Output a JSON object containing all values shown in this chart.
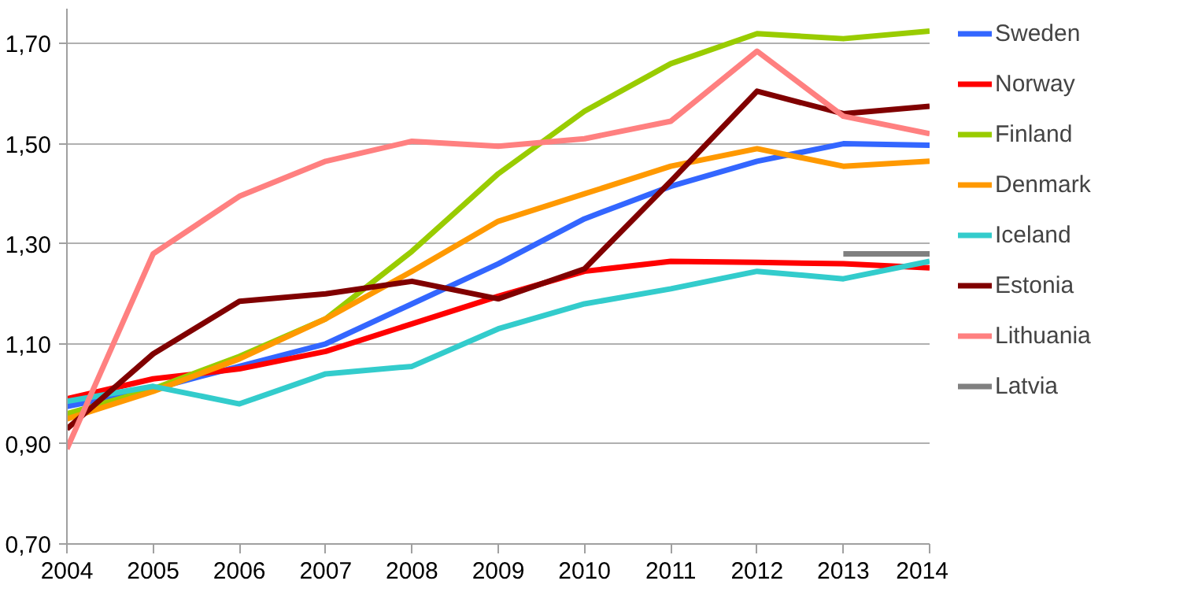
{
  "chart_data": {
    "type": "line",
    "x": [
      2004,
      2005,
      2006,
      2007,
      2008,
      2009,
      2010,
      2011,
      2012,
      2013,
      2014
    ],
    "series": [
      {
        "name": "Sweden",
        "color": "#3366ff",
        "values": [
          0.975,
          1.01,
          1.055,
          1.1,
          1.18,
          1.26,
          1.35,
          1.415,
          1.465,
          1.5,
          1.497
        ]
      },
      {
        "name": "Norway",
        "color": "#ff0000",
        "values": [
          0.99,
          1.03,
          1.05,
          1.085,
          1.14,
          1.195,
          1.245,
          1.265,
          1.263,
          1.26,
          1.252
        ]
      },
      {
        "name": "Finland",
        "color": "#99cc00",
        "values": [
          0.96,
          1.01,
          1.075,
          1.15,
          1.285,
          1.44,
          1.565,
          1.66,
          1.72,
          1.71,
          1.725
        ]
      },
      {
        "name": "Denmark",
        "color": "#ff9900",
        "values": [
          0.95,
          1.005,
          1.07,
          1.15,
          1.245,
          1.345,
          1.4,
          1.455,
          1.49,
          1.455,
          1.465
        ]
      },
      {
        "name": "Iceland",
        "color": "#33cccc",
        "values": [
          0.985,
          1.015,
          0.98,
          1.04,
          1.055,
          1.13,
          1.18,
          1.21,
          1.245,
          1.23,
          1.265
        ]
      },
      {
        "name": "Estonia",
        "color": "#800000",
        "values": [
          0.93,
          1.08,
          1.185,
          1.2,
          1.225,
          1.19,
          1.25,
          1.425,
          1.605,
          1.56,
          1.575
        ]
      },
      {
        "name": "Lithuania",
        "color": "#ff8080",
        "values": [
          0.89,
          1.28,
          1.395,
          1.465,
          1.505,
          1.495,
          1.51,
          1.545,
          1.685,
          1.555,
          1.52
        ]
      },
      {
        "name": "Latvia",
        "color": "#808080",
        "values": [
          null,
          null,
          null,
          null,
          null,
          null,
          null,
          null,
          null,
          1.28,
          1.28
        ]
      }
    ],
    "xlim": [
      2004,
      2014
    ],
    "xticks": [
      2004,
      2005,
      2006,
      2007,
      2008,
      2009,
      2010,
      2011,
      2012,
      2013,
      2014
    ],
    "ylim": [
      0.7,
      1.77
    ],
    "yticks": [
      {
        "value": 0.7,
        "label": "0,70"
      },
      {
        "value": 0.9,
        "label": "0,90"
      },
      {
        "value": 1.1,
        "label": "1,10"
      },
      {
        "value": 1.3,
        "label": "1,30"
      },
      {
        "value": 1.5,
        "label": "1,50"
      },
      {
        "value": 1.7,
        "label": "1,70"
      }
    ],
    "grid": "y",
    "legend": "right",
    "marker": "none",
    "line_style": "solid"
  }
}
